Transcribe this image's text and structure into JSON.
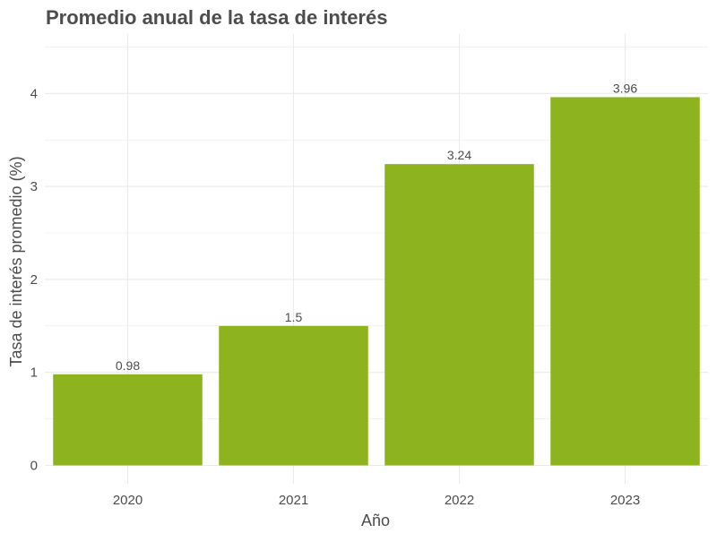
{
  "chart_data": {
    "type": "bar",
    "title": "Promedio anual de la tasa de interés",
    "xlabel": "Año",
    "ylabel": "Tasa de interés promedio (%)",
    "categories": [
      "2020",
      "2021",
      "2022",
      "2023"
    ],
    "values": [
      0.98,
      1.5,
      3.24,
      3.96
    ],
    "value_labels": [
      "0.98",
      "1.5",
      "3.24",
      "3.96"
    ],
    "yticks": [
      0,
      1,
      2,
      3,
      4
    ],
    "ytick_labels": [
      "0",
      "1",
      "2",
      "3",
      "4"
    ],
    "ylim": [
      0,
      4.6
    ],
    "grid": true,
    "bar_color": "#8db31f",
    "grid_color": "#ebebeb",
    "text_color": "#4d4d4d"
  }
}
